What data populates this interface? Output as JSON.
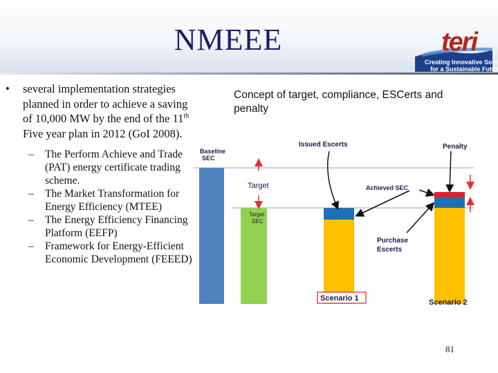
{
  "slide": {
    "title": "NMEEE",
    "page_number": "81"
  },
  "logo": {
    "word": "teri",
    "tagline_1": "Creating Innovative Solutions",
    "tagline_2": "for a Sustainable Future"
  },
  "bullets": {
    "main_before_sup": "several implementation strategies planned in order to achieve a saving of 10,000 MW by the end of the 11",
    "main_sup": "th",
    "main_after_sup": " Five year plan in 2012 (GoI 2008).",
    "sub": [
      "The Perform Achieve and Trade (PAT) energy certificate trading scheme.",
      "The Market Transformation for Energy Efficiency (MTEE)",
      "The Energy Efficiency Financing Platform (EEFP)",
      "Framework for Energy-Efficient Economic Development (FEEED)"
    ]
  },
  "diagram": {
    "title": "Concept of target, compliance, ESCerts and penalty",
    "labels": {
      "baseline_1": "Baseline",
      "baseline_2": "SEC",
      "target": "Target",
      "target_sec_1": "Target",
      "target_sec_2": "SEC",
      "issued": "Issued Escerts",
      "penalty": "Penalty",
      "achieved": "Achieved SEC",
      "purchase_1": "Purchase",
      "purchase_2": "Escerts",
      "scenario1": "Scenario 1",
      "scenario2": "Scenario 2"
    },
    "colors": {
      "baseline": "#4f81bd",
      "target_bar": "#92d050",
      "scenario_fill": "#ffc000",
      "escert": "#1f6fb5",
      "penalty": "#e0202a",
      "arrow": "#e03030"
    }
  }
}
